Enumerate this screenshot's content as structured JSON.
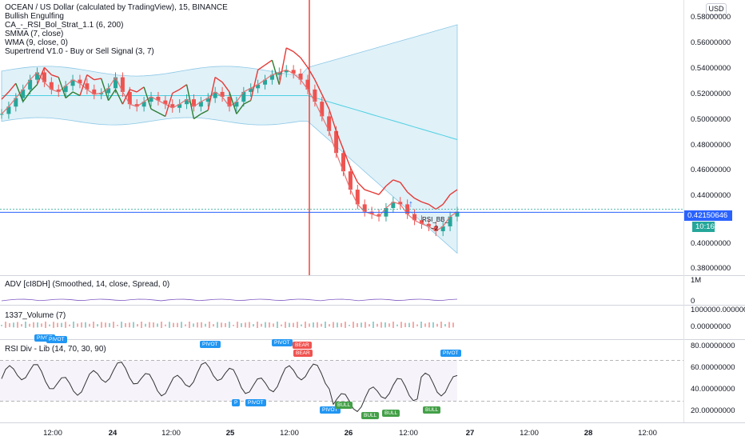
{
  "legend": {
    "title": "OCEAN / US Dollar (calculated by TradingView), 15, BINANCE",
    "line1": "Bullish Engulfing",
    "line2": "CA_-_RSI_Bol_Strat_1.1 (6, 200)",
    "line3": "SMMA (7, close)",
    "line4": "WMA (9, close, 0)",
    "line5": "Supertrend V1.0 - Buy or Sell Signal (3, 7)"
  },
  "currency_button": "USD",
  "price_axis": [
    "0.58000000",
    "0.56000000",
    "0.54000000",
    "0.52000000",
    "0.50000000",
    "0.48000000",
    "0.46000000",
    "0.44000000",
    "0.40000000",
    "0.38000000"
  ],
  "current_price": "0.42150646",
  "countdown": "10:16",
  "annotation_rsi": "RSI_BB_",
  "annotation_num": "−2",
  "adv": {
    "label": "ADV [cI8DH] (Smoothed, 14, close, Spread, 0)",
    "tick_top": "1M",
    "tick_bottom": "0"
  },
  "volume": {
    "label": "1337_Volume (7)",
    "tick_top": "1000000.00000000",
    "tick_bottom": "0.00000000"
  },
  "rsi": {
    "label": "RSI Div - Lib (14, 70, 30, 90)",
    "ticks": [
      "80.00000000",
      "60.00000000",
      "40.00000000",
      "20.00000000"
    ]
  },
  "signals": [
    {
      "text": "PIVOT",
      "color": "#2196f3"
    },
    {
      "text": "PIVOT",
      "color": "#2196f3"
    },
    {
      "text": "PIVOT",
      "color": "#2196f3"
    },
    {
      "text": "BEAR",
      "color": "#f05350"
    },
    {
      "text": "BEAR",
      "color": "#f05350"
    },
    {
      "text": "P",
      "color": "#2196f3"
    },
    {
      "text": "PIVOT",
      "color": "#2196f3"
    },
    {
      "text": "PIVOT",
      "color": "#2196f3"
    },
    {
      "text": "BULL",
      "color": "#43a047"
    },
    {
      "text": "BULL",
      "color": "#43a047"
    },
    {
      "text": "BULL",
      "color": "#43a047"
    },
    {
      "text": "BULL",
      "color": "#43a047"
    },
    {
      "text": "PIVOT",
      "color": "#2196f3"
    },
    {
      "text": "PIVOT",
      "color": "#2196f3"
    }
  ],
  "x_axis": [
    {
      "text": "12:00",
      "bold": false
    },
    {
      "text": "24",
      "bold": true
    },
    {
      "text": "12:00",
      "bold": false
    },
    {
      "text": "25",
      "bold": true
    },
    {
      "text": "12:00",
      "bold": false
    },
    {
      "text": "26",
      "bold": true
    },
    {
      "text": "12:00",
      "bold": false
    },
    {
      "text": "27",
      "bold": true
    },
    {
      "text": "12:00",
      "bold": false
    },
    {
      "text": "28",
      "bold": true
    },
    {
      "text": "12:00",
      "bold": false
    }
  ],
  "colors": {
    "up": "#26a69a",
    "down": "#ef5350",
    "band": "#cce8f4",
    "supertrend_red": "#e53935",
    "supertrend_green": "#2e7d32",
    "cursor": "#f44336",
    "price_line": "#2962ff",
    "rsi_line": "#333333"
  },
  "chart_data": {
    "type": "line",
    "series": [
      {
        "values": [
          0.502,
          0.508,
          0.515,
          0.522,
          0.53,
          0.536,
          0.528,
          0.522,
          0.52,
          0.525,
          0.53,
          0.527,
          0.522,
          0.518,
          0.519,
          0.523,
          0.532,
          0.52,
          0.51,
          0.508,
          0.512,
          0.516,
          0.513,
          0.51,
          0.507,
          0.51,
          0.514,
          0.508,
          0.512,
          0.515,
          0.52,
          0.516,
          0.508,
          0.512,
          0.52,
          0.523,
          0.526,
          0.53,
          0.534,
          0.536,
          0.538,
          0.535,
          0.53,
          0.522,
          0.512,
          0.5,
          0.488,
          0.47,
          0.455,
          0.44,
          0.428,
          0.422,
          0.42,
          0.418,
          0.425,
          0.43,
          0.428,
          0.42,
          0.415,
          0.412,
          0.41,
          0.406,
          0.41,
          0.418,
          0.422
        ]
      }
    ],
    "ylim": [
      0.37,
      0.59
    ]
  }
}
